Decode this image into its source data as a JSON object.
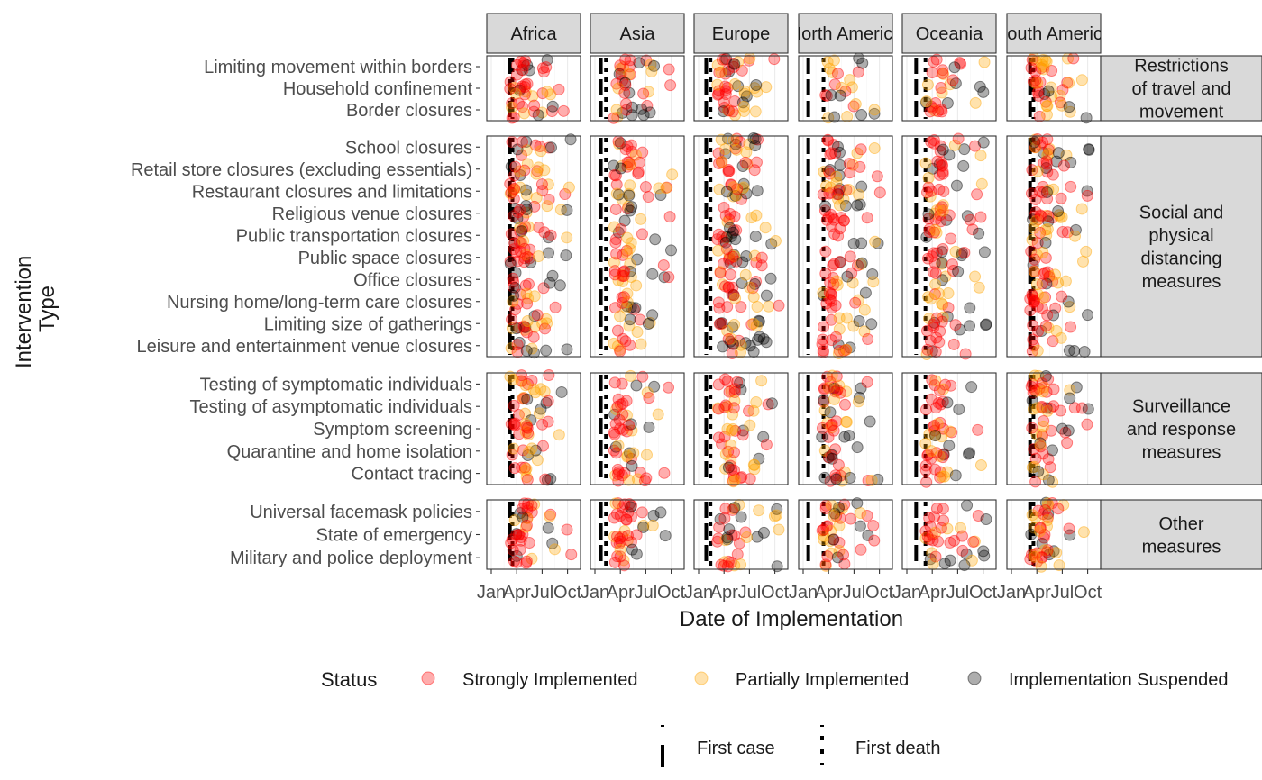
{
  "chart_data": {
    "type": "scatter",
    "xlabel": "Date of Implementation",
    "ylabel": "Intervention\nType",
    "x_ticks": [
      "Jan",
      "Apr",
      "Jul",
      "Oct"
    ],
    "x_domain_months": [
      0,
      10
    ],
    "regions": [
      "Africa",
      "Asia",
      "Europe",
      "North America",
      "Oceania",
      "South America"
    ],
    "first_case_month": [
      2.2,
      0.7,
      0.9,
      0.6,
      1.1,
      2.2
    ],
    "first_death_month": [
      2.5,
      1.3,
      1.4,
      2.4,
      2.2,
      2.6
    ],
    "groups": [
      {
        "label": "Restrictions of travel and movement",
        "label_lines": [
          "Restrictions",
          "of travel and",
          "movement"
        ],
        "interventions": [
          "Limiting movement within borders",
          "Household confinement",
          "Border closures"
        ]
      },
      {
        "label": "Social and physical distancing measures",
        "label_lines": [
          "Social and",
          "physical",
          "distancing",
          "measures"
        ],
        "interventions": [
          "School closures",
          "Retail store closures (excluding essentials)",
          "Restaurant closures and limitations",
          "Religious venue closures",
          "Public transportation closures",
          "Public space closures",
          "Office closures",
          "Nursing home/long-term care closures",
          "Limiting size of gatherings",
          "Leisure and entertainment venue closures"
        ]
      },
      {
        "label": "Surveillance and response measures",
        "label_lines": [
          "Surveillance",
          "and response",
          "measures"
        ],
        "interventions": [
          "Testing of symptomatic individuals",
          "Testing of asymptomatic individuals",
          "Symptom screening",
          "Quarantine and home isolation",
          "Contact tracing"
        ]
      },
      {
        "label": "Other measures",
        "label_lines": [
          "Other",
          "measures"
        ],
        "interventions": [
          "Universal facemask policies",
          "State of emergency",
          "Military and police deployment"
        ]
      }
    ],
    "status_levels": [
      {
        "name": "Strongly Implemented",
        "color": "#ff0000"
      },
      {
        "name": "Partially Implemented",
        "color": "#ffa500"
      },
      {
        "name": "Implementation Suspended",
        "color": "#000000"
      }
    ],
    "point_density_note": "many jittered points per intervention/region; status mix varies by row",
    "legend_position": "bottom"
  },
  "legend": {
    "status_title": "Status",
    "status_items": [
      "Strongly Implemented",
      "Partially Implemented",
      "Implementation Suspended"
    ],
    "line_items": [
      "First case",
      "First death"
    ]
  }
}
